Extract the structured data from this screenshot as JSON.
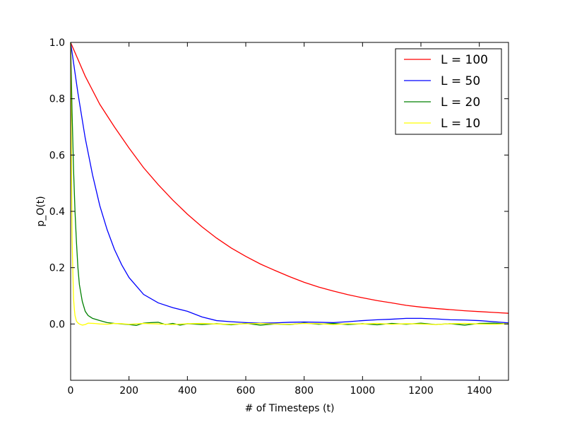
{
  "chart_data": {
    "type": "line",
    "xlabel": "# of Timesteps (t)",
    "ylabel": "p_O(t)",
    "xlim": [
      0,
      1500
    ],
    "ylim": [
      -0.2,
      1.0
    ],
    "x_ticks": [
      0,
      200,
      400,
      600,
      800,
      1000,
      1200,
      1400
    ],
    "x_tick_labels": [
      "0",
      "200",
      "400",
      "600",
      "800",
      "1000",
      "1200",
      "1400"
    ],
    "y_ticks": [
      0.0,
      0.2,
      0.4,
      0.6,
      0.8,
      1.0
    ],
    "y_tick_labels": [
      "0.0",
      "0.2",
      "0.4",
      "0.6",
      "0.8",
      "1.0"
    ],
    "grid": false,
    "legend_position": "top-right",
    "series": [
      {
        "name": "L = 100",
        "color": "#ff0000",
        "x": [
          0,
          50,
          100,
          150,
          200,
          250,
          300,
          350,
          400,
          450,
          500,
          550,
          600,
          650,
          700,
          750,
          800,
          850,
          900,
          950,
          1000,
          1050,
          1100,
          1150,
          1200,
          1250,
          1300,
          1350,
          1400,
          1450,
          1500
        ],
        "y": [
          1.0,
          0.88,
          0.78,
          0.7,
          0.625,
          0.555,
          0.495,
          0.44,
          0.39,
          0.345,
          0.305,
          0.27,
          0.24,
          0.213,
          0.19,
          0.168,
          0.148,
          0.131,
          0.117,
          0.104,
          0.093,
          0.083,
          0.075,
          0.066,
          0.06,
          0.055,
          0.051,
          0.047,
          0.044,
          0.041,
          0.038
        ]
      },
      {
        "name": "L = 50",
        "color": "#0000ff",
        "x": [
          0,
          25,
          50,
          75,
          100,
          125,
          150,
          175,
          200,
          250,
          300,
          350,
          400,
          450,
          500,
          550,
          600,
          650,
          700,
          750,
          800,
          850,
          900,
          950,
          1000,
          1050,
          1100,
          1150,
          1200,
          1250,
          1300,
          1350,
          1400,
          1450,
          1500
        ],
        "y": [
          1.0,
          0.82,
          0.66,
          0.53,
          0.42,
          0.335,
          0.265,
          0.21,
          0.165,
          0.105,
          0.075,
          0.058,
          0.045,
          0.025,
          0.012,
          0.008,
          0.005,
          0.003,
          0.004,
          0.006,
          0.007,
          0.006,
          0.005,
          0.008,
          0.012,
          0.015,
          0.017,
          0.02,
          0.02,
          0.018,
          0.015,
          0.014,
          0.012,
          0.008,
          0.004
        ]
      },
      {
        "name": "L = 20",
        "color": "#008000",
        "x": [
          0,
          5,
          10,
          15,
          20,
          25,
          30,
          40,
          50,
          60,
          75,
          100,
          125,
          150,
          175,
          200,
          225,
          250,
          275,
          300,
          325,
          350,
          375,
          400,
          450,
          500,
          550,
          600,
          650,
          700,
          750,
          800,
          850,
          900,
          950,
          1000,
          1050,
          1100,
          1150,
          1200,
          1250,
          1300,
          1350,
          1400,
          1450,
          1500
        ],
        "y": [
          1.0,
          0.75,
          0.55,
          0.4,
          0.29,
          0.2,
          0.14,
          0.08,
          0.045,
          0.03,
          0.02,
          0.012,
          0.005,
          0.002,
          0.0,
          -0.002,
          -0.005,
          0.003,
          0.005,
          0.006,
          -0.002,
          0.002,
          -0.004,
          0.001,
          -0.002,
          0.001,
          -0.003,
          0.002,
          -0.004,
          0.0,
          -0.002,
          0.003,
          -0.001,
          0.002,
          -0.002,
          0.001,
          -0.003,
          0.002,
          -0.001,
          0.003,
          -0.002,
          0.001,
          -0.004,
          0.002,
          0.003,
          0.0
        ]
      },
      {
        "name": "L = 10",
        "color": "#ffff00",
        "x": [
          0,
          3,
          5,
          8,
          10,
          13,
          15,
          20,
          25,
          30,
          40,
          50,
          60,
          80,
          100,
          125,
          150,
          175,
          200,
          250,
          300,
          350,
          400,
          450,
          500,
          550,
          600,
          650,
          700,
          750,
          800,
          850,
          900,
          950,
          1000,
          1050,
          1100,
          1150,
          1200,
          1250,
          1300,
          1350,
          1400,
          1450,
          1500
        ],
        "y": [
          1.0,
          0.55,
          0.3,
          0.17,
          0.09,
          0.05,
          0.03,
          0.01,
          0.004,
          0.0,
          -0.004,
          -0.002,
          0.003,
          0.002,
          0.0,
          -0.001,
          0.002,
          0.001,
          -0.001,
          0.002,
          0.0,
          -0.002,
          0.001,
          0.002,
          0.0,
          -0.001,
          0.001,
          0.002,
          0.0,
          -0.001,
          0.002,
          0.001,
          -0.002,
          0.001,
          0.0,
          0.002,
          -0.001,
          0.001,
          0.0,
          -0.002,
          0.001,
          0.002,
          0.0,
          -0.001,
          0.001
        ]
      }
    ]
  }
}
